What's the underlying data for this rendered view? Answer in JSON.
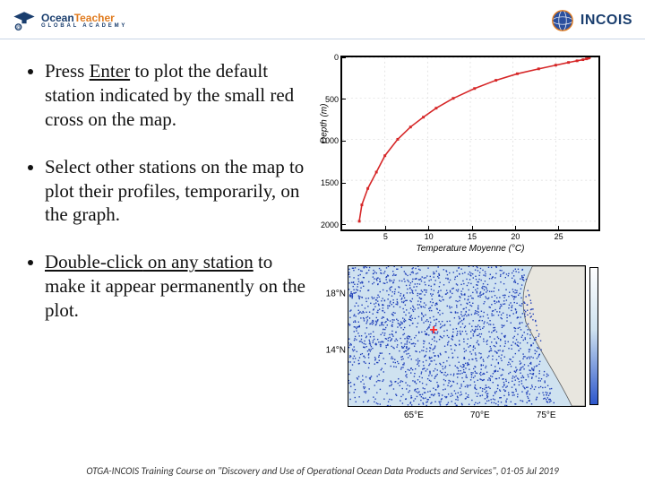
{
  "header": {
    "leftLogo": {
      "line1a": "Ocean",
      "line1b": "Teacher",
      "line2": "GLOBAL ACADEMY"
    },
    "rightLogo": {
      "label": "INCOIS"
    }
  },
  "bullets": [
    {
      "pre": "Press ",
      "u": "Enter",
      "post": " to plot the default station indicated by the small red cross on the map."
    },
    {
      "pre": " Select other stations on the map to plot their profiles, temporarily, on the graph.",
      "u": "",
      "post": ""
    },
    {
      "pre": "Double-click",
      "u": " on any station",
      "post": " to make it appear permanently on the plot."
    }
  ],
  "chart": {
    "type": "line",
    "xlim": [
      0,
      30
    ],
    "ylim_inverted": [
      0,
      2100
    ],
    "ylabel": "Depth (m)",
    "xlabel": "Temperature Moyenne (°C)",
    "yticks": [
      {
        "v": 0,
        "l": "0"
      },
      {
        "v": 500,
        "l": "500"
      },
      {
        "v": 1000,
        "l": "1000"
      },
      {
        "v": 1500,
        "l": "1500"
      },
      {
        "v": 2000,
        "l": "2000"
      }
    ],
    "xticks": [
      {
        "v": 5,
        "l": "5"
      },
      {
        "v": 10,
        "l": "10"
      },
      {
        "v": 15,
        "l": "15"
      },
      {
        "v": 20,
        "l": "20"
      },
      {
        "v": 25,
        "l": "25"
      }
    ],
    "line_color": "#d62728",
    "line_width": 1.6,
    "points": [
      {
        "x": 2.0,
        "y": 2000
      },
      {
        "x": 2.3,
        "y": 1800
      },
      {
        "x": 3.0,
        "y": 1600
      },
      {
        "x": 4.0,
        "y": 1400
      },
      {
        "x": 5.0,
        "y": 1200
      },
      {
        "x": 6.5,
        "y": 1000
      },
      {
        "x": 8.0,
        "y": 850
      },
      {
        "x": 9.5,
        "y": 730
      },
      {
        "x": 11.0,
        "y": 620
      },
      {
        "x": 13.0,
        "y": 500
      },
      {
        "x": 15.5,
        "y": 380
      },
      {
        "x": 18.0,
        "y": 280
      },
      {
        "x": 20.5,
        "y": 200
      },
      {
        "x": 23.0,
        "y": 140
      },
      {
        "x": 25.0,
        "y": 95
      },
      {
        "x": 26.5,
        "y": 62
      },
      {
        "x": 27.5,
        "y": 42
      },
      {
        "x": 28.2,
        "y": 28
      },
      {
        "x": 28.6,
        "y": 18
      },
      {
        "x": 28.8,
        "y": 10
      },
      {
        "x": 28.9,
        "y": 5
      },
      {
        "x": 28.95,
        "y": 0
      }
    ],
    "grid_color": "#d9d9d9"
  },
  "map": {
    "type": "scatter-map",
    "bg_color": "#cfe2f0",
    "sea_point_color": "#1f3fb8",
    "land_color": "#e8e6df",
    "coast_color": "#5a5a5a",
    "cross_color": "#ff2a2a",
    "yticks": [
      {
        "l": "18°N",
        "v": 18
      },
      {
        "l": "14°N",
        "v": 14
      }
    ],
    "xticks": [
      {
        "l": "65°E",
        "v": 65
      },
      {
        "l": "70°E",
        "v": 70
      },
      {
        "l": "75°E",
        "v": 75
      }
    ],
    "xlim": [
      60,
      78
    ],
    "ylim": [
      10,
      20
    ]
  },
  "footer": "OTGA-INCOIS Training Course on \"Discovery and Use of Operational Ocean Data Products and Services\", 01-05 Jul 2019"
}
